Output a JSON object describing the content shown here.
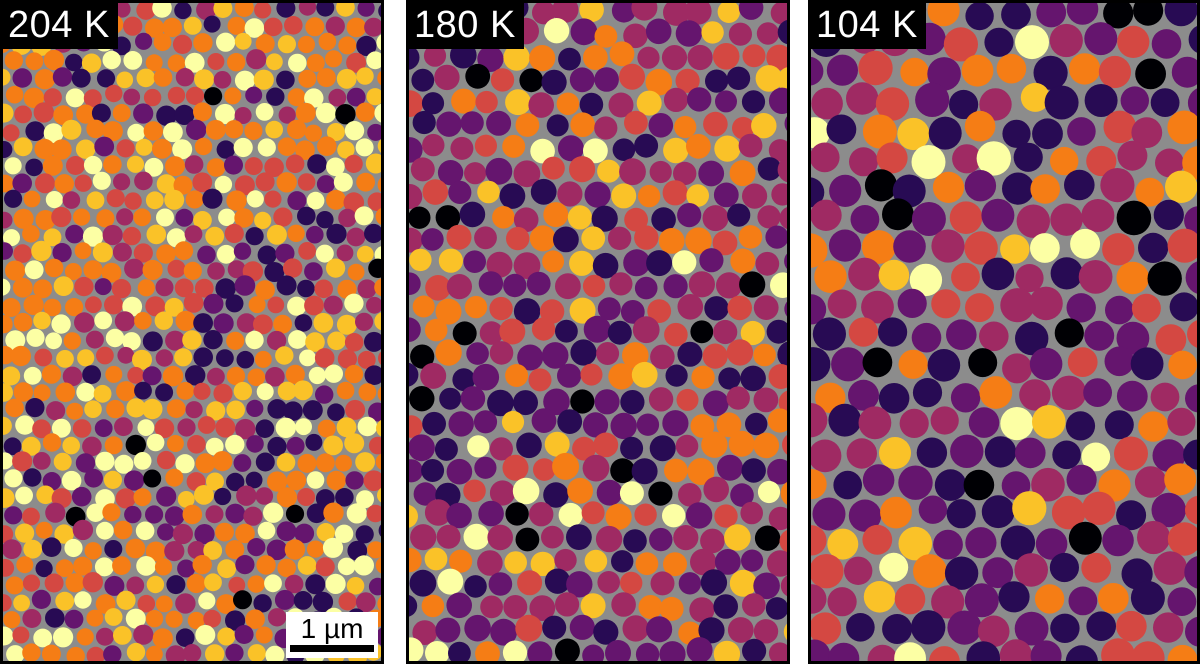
{
  "panels": [
    {
      "temperature_label": "204 K",
      "scale_bar_label": "1 µm"
    },
    {
      "temperature_label": "180 K"
    },
    {
      "temperature_label": "104 K"
    }
  ],
  "colors": {
    "background": "#8c8c8c",
    "palette": [
      "#000004",
      "#280b54",
      "#65156e",
      "#9f2a63",
      "#d44842",
      "#f57d15",
      "#fac228",
      "#fcffa4"
    ]
  }
}
